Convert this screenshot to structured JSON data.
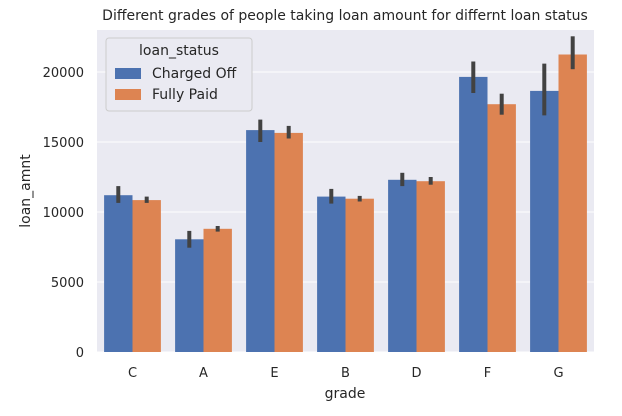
{
  "chart_data": {
    "type": "bar",
    "title": "Different grades of people taking loan amount for differnt loan status",
    "xlabel": "grade",
    "ylabel": "loan_amnt",
    "categories": [
      "C",
      "A",
      "E",
      "B",
      "D",
      "F",
      "G"
    ],
    "ylim": [
      0,
      23000
    ],
    "yticks": [
      0,
      5000,
      10000,
      15000,
      20000
    ],
    "grid": true,
    "legend": {
      "title": "loan_status",
      "placement": "top-left"
    },
    "series": [
      {
        "name": "Charged Off",
        "color": "#4c72b0",
        "values": [
          11200,
          8050,
          15850,
          11100,
          12300,
          19650,
          18650
        ],
        "ci_low": [
          10650,
          7450,
          15000,
          10600,
          11850,
          18500,
          16900
        ],
        "ci_high": [
          11850,
          8650,
          16600,
          11650,
          12800,
          20750,
          20600
        ]
      },
      {
        "name": "Fully Paid",
        "color": "#dd8452",
        "values": [
          10850,
          8800,
          15650,
          10950,
          12200,
          17700,
          21250
        ],
        "ci_low": [
          10650,
          8600,
          15250,
          10750,
          11950,
          16950,
          20200
        ],
        "ci_high": [
          11100,
          9000,
          16150,
          11150,
          12500,
          18450,
          22550
        ]
      }
    ]
  }
}
